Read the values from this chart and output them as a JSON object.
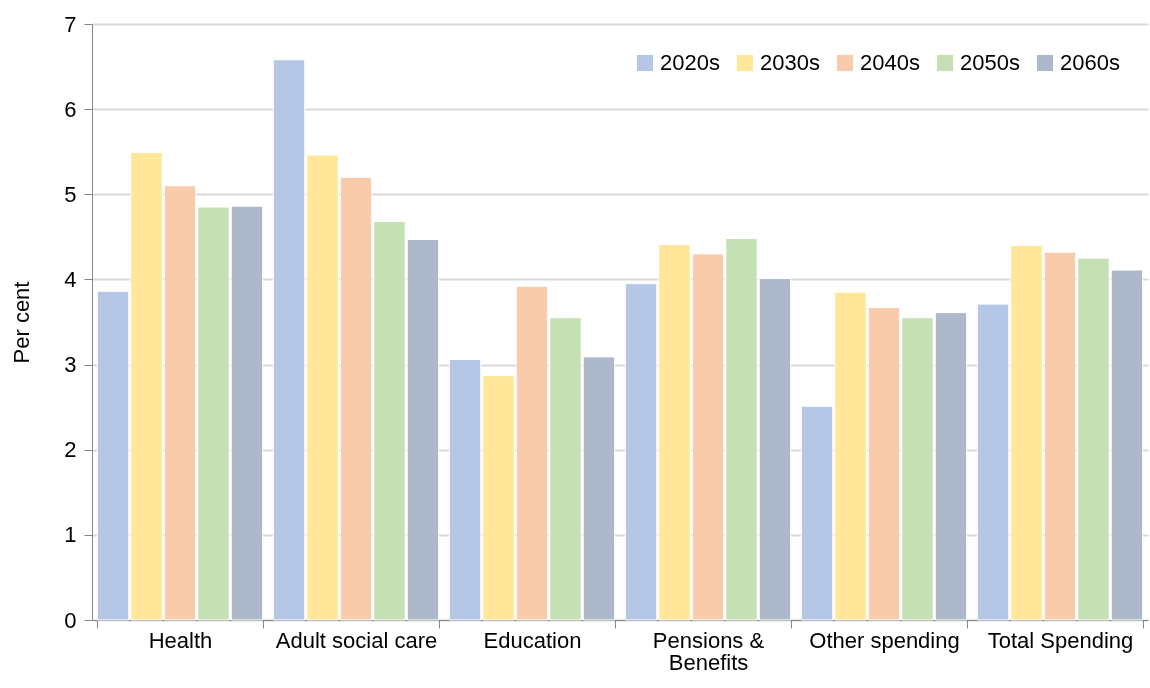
{
  "chart_data": {
    "type": "bar",
    "ylabel": "Per cent",
    "categories": [
      "Health",
      "Adult social care",
      "Education",
      "Pensions & Benefits",
      "Other spending",
      "Total Spending"
    ],
    "series": [
      {
        "name": "2020s",
        "color": "#b4c7e7",
        "values": [
          3.86,
          6.58,
          3.06,
          3.95,
          2.51,
          3.71
        ]
      },
      {
        "name": "2030s",
        "color": "#ffe699",
        "values": [
          5.49,
          5.46,
          2.87,
          4.41,
          3.85,
          4.4
        ]
      },
      {
        "name": "2040s",
        "color": "#f8cbad",
        "values": [
          5.1,
          5.2,
          3.92,
          4.3,
          3.67,
          4.32
        ]
      },
      {
        "name": "2050s",
        "color": "#c5e0b4",
        "values": [
          4.85,
          4.68,
          3.55,
          4.48,
          3.55,
          4.25
        ]
      },
      {
        "name": "2060s",
        "color": "#adb9ca",
        "values": [
          4.86,
          4.47,
          3.09,
          4.01,
          3.61,
          4.11
        ]
      }
    ],
    "ylim": [
      0,
      7
    ],
    "yticks": [
      0,
      1,
      2,
      3,
      4,
      5,
      6,
      7
    ],
    "grid": "y",
    "legend": "top right"
  }
}
